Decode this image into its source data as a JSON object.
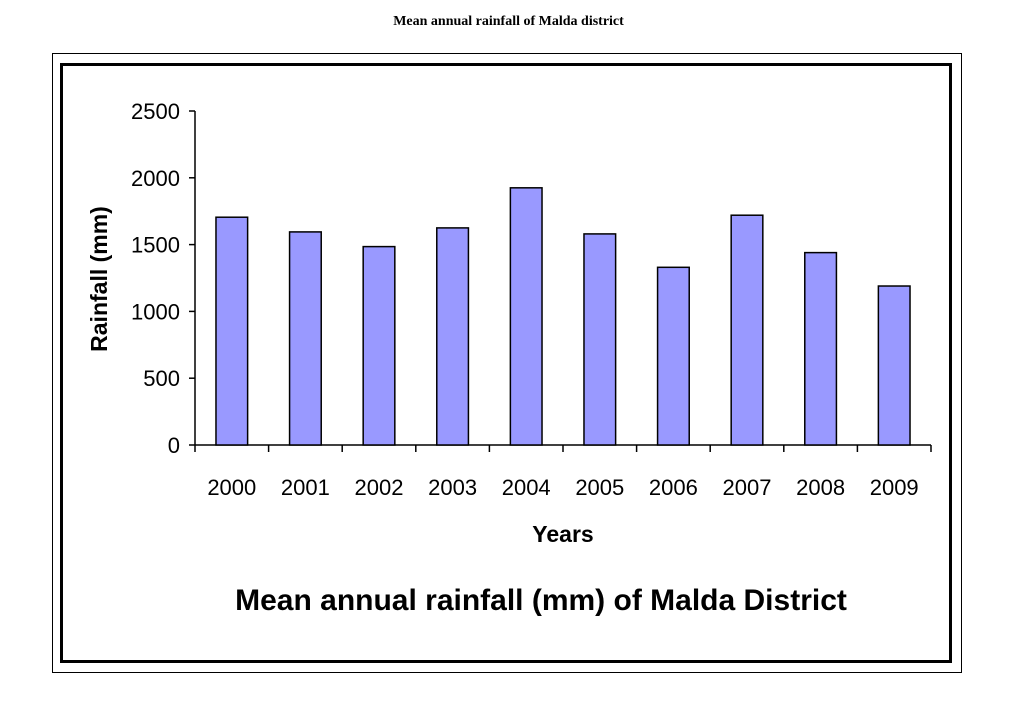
{
  "page": {
    "title": "Mean annual rainfall of Malda district"
  },
  "chart_data": {
    "type": "bar",
    "title": "Mean annual rainfall (mm) of Malda District",
    "xlabel": "Years",
    "ylabel": "Rainfall (mm)",
    "categories": [
      "2000",
      "2001",
      "2002",
      "2003",
      "2004",
      "2005",
      "2006",
      "2007",
      "2008",
      "2009"
    ],
    "values": [
      1705,
      1595,
      1485,
      1625,
      1925,
      1580,
      1330,
      1720,
      1440,
      1190
    ],
    "ylim": [
      0,
      2500
    ],
    "yticks": [
      0,
      500,
      1000,
      1500,
      2000,
      2500
    ],
    "grid": false,
    "legend": "none",
    "colors": {
      "bar_fill": "#9999FF",
      "bar_stroke": "#000000",
      "axis": "#000000"
    }
  }
}
